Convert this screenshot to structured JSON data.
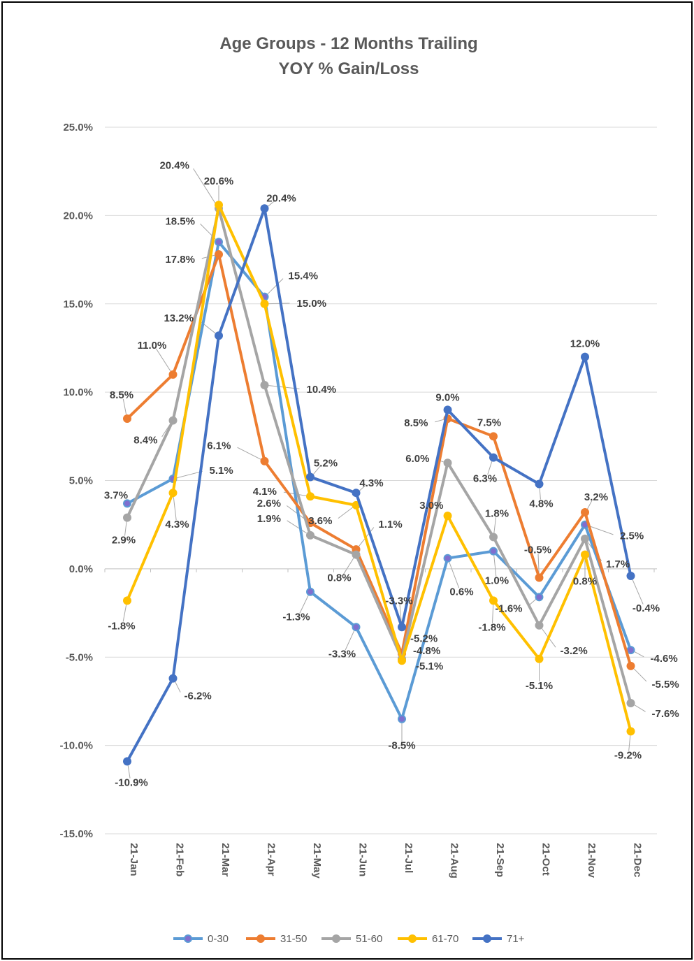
{
  "chart_data": {
    "type": "line",
    "title": "Age Groups - 12 Months Trailing",
    "subtitle": "YOY % Gain/Loss",
    "categories": [
      "21-Jan",
      "21-Feb",
      "21-Mar",
      "21-Apr",
      "21-May",
      "21-Jun",
      "21-Jul",
      "21-Aug",
      "21-Sep",
      "21-Oct",
      "21-Nov",
      "21-Dec"
    ],
    "ylim": [
      -15,
      25
    ],
    "yticks": [
      25,
      20,
      15,
      10,
      5,
      0,
      -5,
      -10,
      -15
    ],
    "ytick_labels": [
      "25.0%",
      "20.0%",
      "15.0%",
      "10.0%",
      "5.0%",
      "0.0%",
      "-5.0%",
      "-10.0%",
      "-15.0%"
    ],
    "legend_position": "bottom",
    "grid": true,
    "series": [
      {
        "name": "0-30",
        "color": "#5B9BD5",
        "marker_fill": "#7F6FCF",
        "values": [
          3.7,
          5.1,
          18.5,
          15.4,
          -1.3,
          -3.3,
          -8.5,
          0.6,
          1.0,
          -1.6,
          2.5,
          -4.6
        ],
        "labels": [
          "3.7%",
          "5.1%",
          "18.5%",
          "15.4%",
          "-1.3%",
          "-3.3%",
          "-8.5%",
          "0.6%",
          "1.0%",
          "-1.6%",
          "2.5%",
          "-4.6%"
        ]
      },
      {
        "name": "31-50",
        "color": "#ED7D31",
        "marker_fill": "#ED7D31",
        "values": [
          8.5,
          11.0,
          17.8,
          6.1,
          2.6,
          1.1,
          -4.8,
          8.5,
          7.5,
          -0.5,
          3.2,
          -5.5
        ],
        "labels": [
          "8.5%",
          "11.0%",
          "17.8%",
          "6.1%",
          "2.6%",
          "1.1%",
          "-4.8%",
          "8.5%",
          "7.5%",
          "-0.5%",
          "3.2%",
          "-5.5%"
        ]
      },
      {
        "name": "51-60",
        "color": "#A5A5A5",
        "marker_fill": "#A5A5A5",
        "values": [
          2.9,
          8.4,
          20.4,
          10.4,
          1.9,
          0.8,
          -5.1,
          6.0,
          1.8,
          -3.2,
          1.7,
          -7.6
        ],
        "labels": [
          "2.9%",
          "8.4%",
          "20.4%",
          "10.4%",
          "1.9%",
          "0.8%",
          "-5.1%",
          "6.0%",
          "1.8%",
          "-3.2%",
          "1.7%",
          "-7.6%"
        ]
      },
      {
        "name": "61-70",
        "color": "#FFC000",
        "marker_fill": "#FFC000",
        "values": [
          -1.8,
          4.3,
          20.6,
          15.0,
          4.1,
          3.6,
          -5.2,
          3.0,
          -1.8,
          -5.1,
          0.8,
          -9.2
        ],
        "labels": [
          "-1.8%",
          "4.3%",
          "20.6%",
          "15.0%",
          "4.1%",
          "3.6%",
          "-5.2%",
          "3.0%",
          "-1.8%",
          "-5.1%",
          "0.8%",
          "-9.2%"
        ]
      },
      {
        "name": "71+",
        "color": "#4472C4",
        "marker_fill": "#4472C4",
        "values": [
          -10.9,
          -6.2,
          13.2,
          20.4,
          5.2,
          4.3,
          -3.3,
          9.0,
          6.3,
          4.8,
          12.0,
          -0.4
        ],
        "labels": [
          "-10.9%",
          "-6.2%",
          "13.2%",
          "20.4%",
          "5.2%",
          "4.3%",
          "-3.3%",
          "9.0%",
          "6.3%",
          "4.8%",
          "12.0%",
          "-0.4%"
        ]
      }
    ]
  }
}
